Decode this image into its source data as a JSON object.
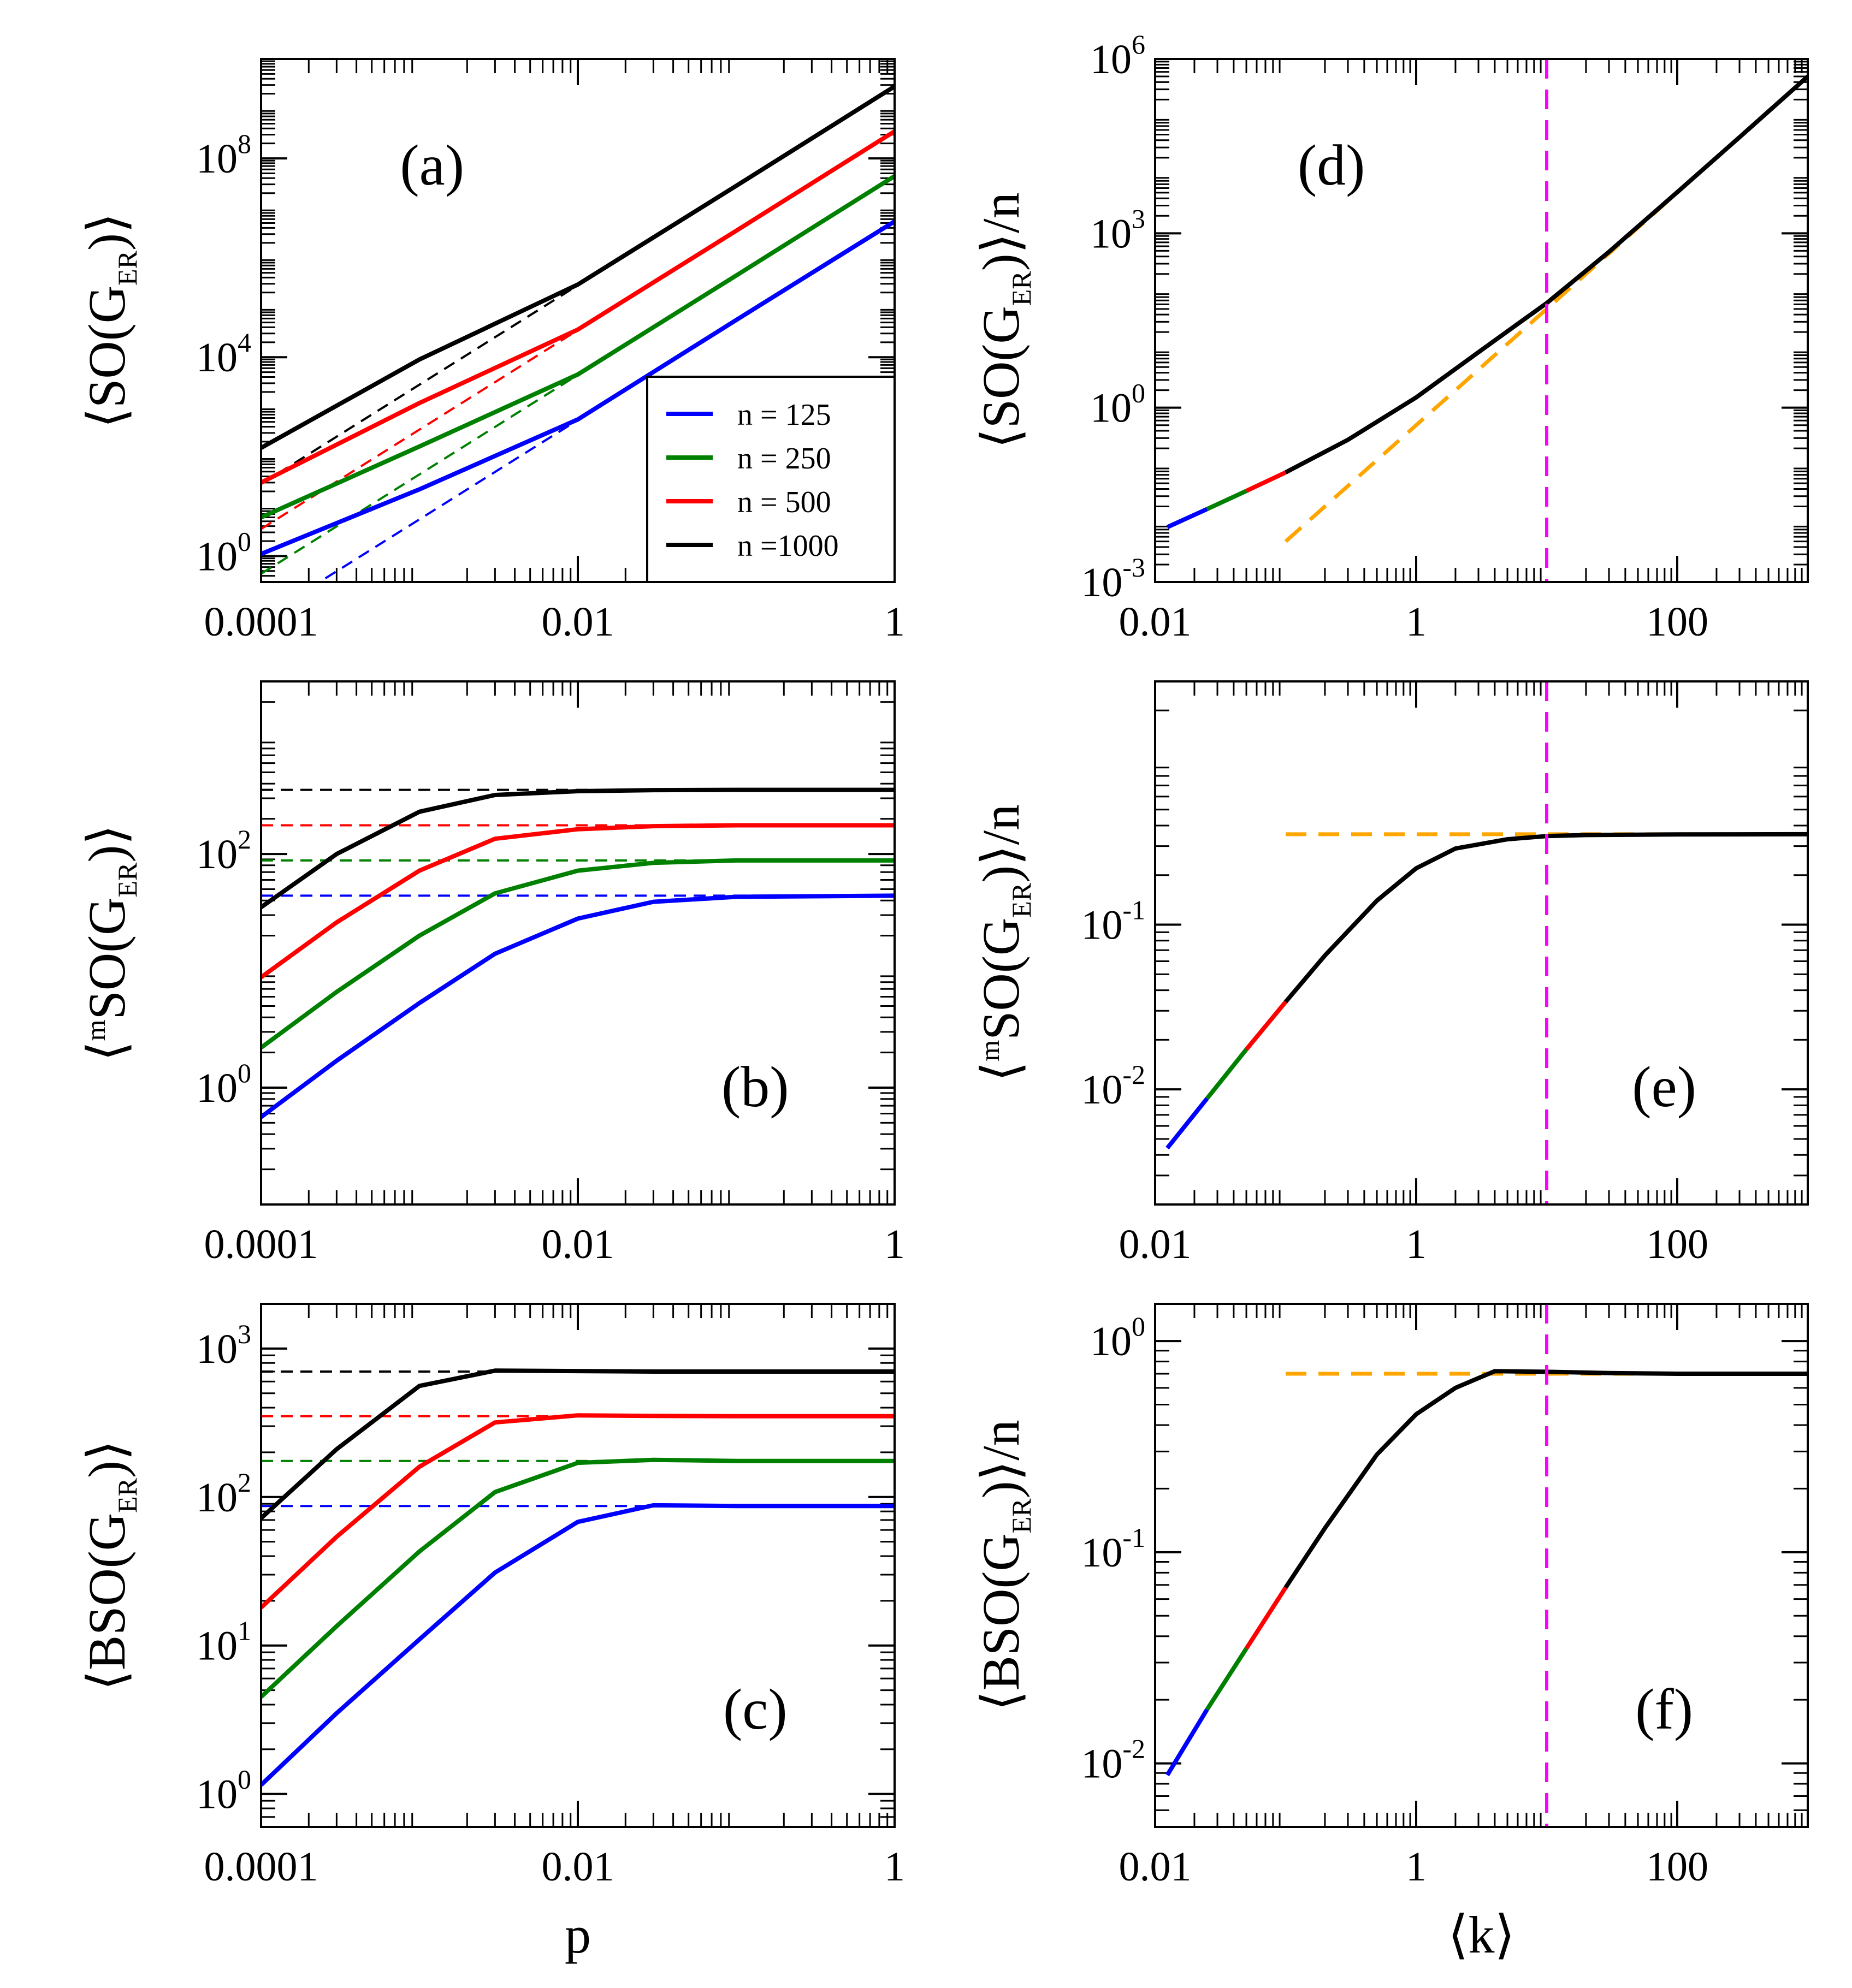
{
  "colors": {
    "n125": "#0000ff",
    "n250": "#008000",
    "n500": "#ff0000",
    "n1000": "#000000",
    "orange": "#ffa500",
    "magenta": "#ff00ff"
  },
  "legend": {
    "entries": [
      {
        "label": "n = 125",
        "color": "#0000ff"
      },
      {
        "label": "n = 250",
        "color": "#008000"
      },
      {
        "label": "n = 500",
        "color": "#ff0000"
      },
      {
        "label": "n =1000",
        "color": "#000000"
      }
    ]
  },
  "chart_data": [
    {
      "id": "a",
      "type": "line",
      "panel_label": "(a)",
      "ylabel": {
        "pre": "⟨SO(G",
        "sub": "ER",
        "post": ")⟩"
      },
      "xlabel": "",
      "xlim": [
        0.0001,
        1
      ],
      "ylim": [
        0.3,
        10000000000.0
      ],
      "xscale": "log",
      "yscale": "log",
      "xticks": [
        {
          "v": 0.0001,
          "label": "0.0001"
        },
        {
          "v": 0.01,
          "label": "0.01"
        },
        {
          "v": 1,
          "label": "1"
        }
      ],
      "yticks": [
        {
          "v": 1,
          "base": "10",
          "exp": "0"
        },
        {
          "v": 10000,
          "base": "10",
          "exp": "4"
        },
        {
          "v": 100000000,
          "base": "10",
          "exp": "8"
        }
      ],
      "series": [
        {
          "name": "n = 125",
          "color": "#0000ff",
          "style": "solid",
          "x": [
            0.0001,
            0.001,
            0.01,
            0.1,
            1
          ],
          "y": [
            1.1,
            22,
            560,
            56000,
            5400000
          ]
        },
        {
          "name": "n = 250",
          "color": "#008000",
          "style": "solid",
          "x": [
            0.0001,
            0.001,
            0.01,
            0.1,
            1
          ],
          "y": [
            6,
            160,
            4500,
            440000,
            44000000
          ]
        },
        {
          "name": "n = 500",
          "color": "#ff0000",
          "style": "solid",
          "x": [
            0.0001,
            0.001,
            0.01,
            0.1,
            1
          ],
          "y": [
            30,
            1200,
            36000,
            3500000,
            350000000
          ]
        },
        {
          "name": "n = 1000",
          "color": "#000000",
          "style": "solid",
          "x": [
            0.0001,
            0.001,
            0.01,
            0.1,
            1
          ],
          "y": [
            150,
            9000,
            290000,
            28000000,
            2800000000
          ]
        },
        {
          "name": "n = 125 asymptote",
          "color": "#0000ff",
          "style": "dashed",
          "x": [
            0.0002,
            1
          ],
          "y": [
            0.22,
            5400000
          ]
        },
        {
          "name": "n = 250 asymptote",
          "color": "#008000",
          "style": "dashed",
          "x": [
            0.0001,
            1
          ],
          "y": [
            0.44,
            44000000
          ]
        },
        {
          "name": "n = 500 asymptote",
          "color": "#ff0000",
          "style": "dashed",
          "x": [
            0.0001,
            1
          ],
          "y": [
            3.5,
            350000000
          ]
        },
        {
          "name": "n = 1000 asymptote",
          "color": "#000000",
          "style": "dashed",
          "x": [
            0.0001,
            1
          ],
          "y": [
            28,
            2800000000
          ]
        }
      ]
    },
    {
      "id": "b",
      "type": "line",
      "panel_label": "(b)",
      "ylabel": {
        "pre": "⟨",
        "presup": "m",
        "mid": "SO(G",
        "sub": "ER",
        "post": ")⟩"
      },
      "xlabel": "",
      "xlim": [
        0.0001,
        1
      ],
      "ylim": [
        0.1,
        3000
      ],
      "xscale": "log",
      "yscale": "log",
      "xticks": [
        {
          "v": 0.0001,
          "label": "0.0001"
        },
        {
          "v": 0.01,
          "label": "0.01"
        },
        {
          "v": 1,
          "label": "1"
        }
      ],
      "yticks": [
        {
          "v": 1,
          "base": "10",
          "exp": "0"
        },
        {
          "v": 100,
          "base": "10",
          "exp": "2"
        }
      ],
      "series": [
        {
          "name": "n = 125",
          "color": "#0000ff",
          "style": "solid",
          "x": [
            0.0001,
            0.0003,
            0.001,
            0.003,
            0.01,
            0.03,
            0.1,
            1
          ],
          "y": [
            0.56,
            1.7,
            5.3,
            14,
            28,
            39,
            43,
            44
          ]
        },
        {
          "name": "n = 250",
          "color": "#008000",
          "style": "solid",
          "x": [
            0.0001,
            0.0003,
            0.001,
            0.003,
            0.01,
            0.03,
            0.1,
            1
          ],
          "y": [
            2.2,
            6.6,
            20,
            46,
            72,
            84,
            88,
            88
          ]
        },
        {
          "name": "n = 500",
          "color": "#ff0000",
          "style": "solid",
          "x": [
            0.0001,
            0.0003,
            0.001,
            0.003,
            0.01,
            0.03,
            0.1,
            1
          ],
          "y": [
            8.8,
            26,
            72,
            135,
            163,
            173,
            176,
            176
          ]
        },
        {
          "name": "n = 1000",
          "color": "#000000",
          "style": "solid",
          "x": [
            0.0001,
            0.0003,
            0.001,
            0.003,
            0.01,
            0.03,
            0.1,
            1
          ],
          "y": [
            35,
            100,
            230,
            320,
            345,
            352,
            354,
            354
          ]
        },
        {
          "name": "n = 125 limit",
          "color": "#0000ff",
          "style": "dashed",
          "x": [
            0.0001,
            1
          ],
          "y": [
            44,
            44
          ]
        },
        {
          "name": "n = 250 limit",
          "color": "#008000",
          "style": "dashed",
          "x": [
            0.0001,
            1
          ],
          "y": [
            88,
            88
          ]
        },
        {
          "name": "n = 500 limit",
          "color": "#ff0000",
          "style": "dashed",
          "x": [
            0.0001,
            1
          ],
          "y": [
            176,
            176
          ]
        },
        {
          "name": "n = 1000 limit",
          "color": "#000000",
          "style": "dashed",
          "x": [
            0.0001,
            1
          ],
          "y": [
            354,
            354
          ]
        }
      ]
    },
    {
      "id": "c",
      "type": "line",
      "panel_label": "(c)",
      "ylabel": {
        "pre": "⟨BSO(G",
        "sub": "ER",
        "post": ")⟩"
      },
      "xlabel": "p",
      "xlim": [
        0.0001,
        1
      ],
      "ylim": [
        0.6,
        2000
      ],
      "xscale": "log",
      "yscale": "log",
      "xticks": [
        {
          "v": 0.0001,
          "label": "0.0001"
        },
        {
          "v": 0.01,
          "label": "0.01"
        },
        {
          "v": 1,
          "label": "1"
        }
      ],
      "yticks": [
        {
          "v": 1,
          "base": "10",
          "exp": "0"
        },
        {
          "v": 10,
          "base": "10",
          "exp": "1"
        },
        {
          "v": 100,
          "base": "10",
          "exp": "2"
        },
        {
          "v": 1000,
          "base": "10",
          "exp": "3"
        }
      ],
      "series": [
        {
          "name": "n = 125",
          "color": "#0000ff",
          "style": "solid",
          "x": [
            0.0001,
            0.0003,
            0.001,
            0.003,
            0.01,
            0.03,
            0.1,
            1
          ],
          "y": [
            1.15,
            3.5,
            11,
            31,
            68,
            88,
            87,
            87
          ]
        },
        {
          "name": "n = 250",
          "color": "#008000",
          "style": "solid",
          "x": [
            0.0001,
            0.0003,
            0.001,
            0.003,
            0.01,
            0.03,
            0.1,
            1
          ],
          "y": [
            4.5,
            13.5,
            43,
            108,
            170,
            178,
            175,
            175
          ]
        },
        {
          "name": "n = 500",
          "color": "#ff0000",
          "style": "solid",
          "x": [
            0.0001,
            0.0003,
            0.001,
            0.003,
            0.01,
            0.03,
            0.1,
            1
          ],
          "y": [
            18,
            54,
            160,
            318,
            355,
            352,
            350,
            350
          ]
        },
        {
          "name": "n = 1000",
          "color": "#000000",
          "style": "solid",
          "x": [
            0.0001,
            0.0003,
            0.001,
            0.003,
            0.01,
            0.03,
            0.1,
            1
          ],
          "y": [
            72,
            210,
            560,
            710,
            705,
            700,
            700,
            700
          ]
        },
        {
          "name": "n = 125 limit",
          "color": "#0000ff",
          "style": "dashed",
          "x": [
            0.0001,
            1
          ],
          "y": [
            87,
            87
          ]
        },
        {
          "name": "n = 250 limit",
          "color": "#008000",
          "style": "dashed",
          "x": [
            0.0001,
            1
          ],
          "y": [
            175,
            175
          ]
        },
        {
          "name": "n = 500 limit",
          "color": "#ff0000",
          "style": "dashed",
          "x": [
            0.0001,
            1
          ],
          "y": [
            350,
            350
          ]
        },
        {
          "name": "n = 1000 limit",
          "color": "#000000",
          "style": "dashed",
          "x": [
            0.0001,
            1
          ],
          "y": [
            700,
            700
          ]
        }
      ]
    },
    {
      "id": "d",
      "type": "line",
      "panel_label": "(d)",
      "ylabel": {
        "pre": "⟨SO(G",
        "sub": "ER",
        "post": ")⟩/n"
      },
      "xlabel": "",
      "xlim": [
        0.01,
        1000
      ],
      "ylim": [
        0.001,
        1000000
      ],
      "xscale": "log",
      "yscale": "log",
      "xticks": [
        {
          "v": 0.01,
          "label": "0.01"
        },
        {
          "v": 1,
          "label": "1"
        },
        {
          "v": 100,
          "label": "100"
        }
      ],
      "yticks": [
        {
          "v": 0.001,
          "base": "10",
          "exp": "-3"
        },
        {
          "v": 1,
          "base": "10",
          "exp": "0"
        },
        {
          "v": 1000,
          "base": "10",
          "exp": "3"
        },
        {
          "v": 1000000,
          "base": "10",
          "exp": "6"
        }
      ],
      "vline": {
        "x": 10,
        "color": "#ff00ff"
      },
      "series": [
        {
          "name": "n = 125 segment",
          "color": "#0000ff",
          "style": "solid",
          "x": [
            0.0124,
            0.025
          ],
          "y": [
            0.0088,
            0.018
          ]
        },
        {
          "name": "n = 250 segment",
          "color": "#008000",
          "style": "solid",
          "x": [
            0.025,
            0.05
          ],
          "y": [
            0.018,
            0.037
          ]
        },
        {
          "name": "n = 500 segment",
          "color": "#ff0000",
          "style": "solid",
          "x": [
            0.05,
            0.1
          ],
          "y": [
            0.037,
            0.077
          ]
        },
        {
          "name": "n = 1000",
          "color": "#000000",
          "style": "solid",
          "x": [
            0.1,
            0.3,
            1,
            3,
            10,
            30,
            100,
            300,
            1000
          ],
          "y": [
            0.077,
            0.28,
            1.5,
            9,
            63,
            480,
            5100,
            45000,
            500000
          ]
        },
        {
          "name": "asymptote",
          "color": "#ffa500",
          "style": "dashed",
          "x": [
            0.1,
            1000
          ],
          "y": [
            0.005,
            500000
          ]
        }
      ]
    },
    {
      "id": "e",
      "type": "line",
      "panel_label": "(e)",
      "ylabel": {
        "pre": "⟨",
        "presup": "m",
        "mid": "SO(G",
        "sub": "ER",
        "post": ")⟩/n"
      },
      "xlabel": "",
      "xlim": [
        0.01,
        1000
      ],
      "ylim": [
        0.002,
        3
      ],
      "xscale": "log",
      "yscale": "log",
      "xticks": [
        {
          "v": 0.01,
          "label": "0.01"
        },
        {
          "v": 1,
          "label": "1"
        },
        {
          "v": 100,
          "label": "100"
        }
      ],
      "yticks": [
        {
          "v": 0.01,
          "base": "10",
          "exp": "-2"
        },
        {
          "v": 0.1,
          "base": "10",
          "exp": "-1"
        }
      ],
      "vline": {
        "x": 10,
        "color": "#ff00ff"
      },
      "series": [
        {
          "name": "n = 125 segment",
          "color": "#0000ff",
          "style": "solid",
          "x": [
            0.0124,
            0.025
          ],
          "y": [
            0.0044,
            0.0088
          ]
        },
        {
          "name": "n = 250 segment",
          "color": "#008000",
          "style": "solid",
          "x": [
            0.025,
            0.05
          ],
          "y": [
            0.0088,
            0.0175
          ]
        },
        {
          "name": "n = 500 segment",
          "color": "#ff0000",
          "style": "solid",
          "x": [
            0.05,
            0.1
          ],
          "y": [
            0.0175,
            0.034
          ]
        },
        {
          "name": "n = 1000",
          "color": "#000000",
          "style": "solid",
          "x": [
            0.1,
            0.2,
            0.5,
            1,
            2,
            5,
            10,
            20,
            50,
            100,
            1000
          ],
          "y": [
            0.034,
            0.065,
            0.14,
            0.22,
            0.29,
            0.33,
            0.345,
            0.35,
            0.352,
            0.353,
            0.354
          ]
        },
        {
          "name": "limit",
          "color": "#ffa500",
          "style": "dashed",
          "x": [
            0.1,
            1000
          ],
          "y": [
            0.354,
            0.354
          ]
        }
      ]
    },
    {
      "id": "f",
      "type": "line",
      "panel_label": "(f)",
      "ylabel": {
        "pre": "⟨BSO(G",
        "sub": "ER",
        "post": ")⟩/n"
      },
      "xlabel": "⟨k⟩",
      "xlim": [
        0.01,
        1000
      ],
      "ylim": [
        0.005,
        1.5
      ],
      "xscale": "log",
      "yscale": "log",
      "xticks": [
        {
          "v": 0.01,
          "label": "0.01"
        },
        {
          "v": 1,
          "label": "1"
        },
        {
          "v": 100,
          "label": "100"
        }
      ],
      "yticks": [
        {
          "v": 0.01,
          "base": "10",
          "exp": "-2"
        },
        {
          "v": 0.1,
          "base": "10",
          "exp": "-1"
        },
        {
          "v": 1,
          "base": "10",
          "exp": "0"
        }
      ],
      "vline": {
        "x": 10,
        "color": "#ff00ff"
      },
      "series": [
        {
          "name": "n = 125 segment",
          "color": "#0000ff",
          "style": "solid",
          "x": [
            0.0124,
            0.025
          ],
          "y": [
            0.0088,
            0.018
          ]
        },
        {
          "name": "n = 250 segment",
          "color": "#008000",
          "style": "solid",
          "x": [
            0.025,
            0.05
          ],
          "y": [
            0.018,
            0.035
          ]
        },
        {
          "name": "n = 500 segment",
          "color": "#ff0000",
          "style": "solid",
          "x": [
            0.05,
            0.1
          ],
          "y": [
            0.035,
            0.068
          ]
        },
        {
          "name": "n = 1000",
          "color": "#000000",
          "style": "solid",
          "x": [
            0.1,
            0.2,
            0.5,
            1,
            2,
            4,
            10,
            30,
            100,
            1000
          ],
          "y": [
            0.068,
            0.13,
            0.29,
            0.45,
            0.6,
            0.72,
            0.715,
            0.705,
            0.7,
            0.7
          ]
        },
        {
          "name": "limit",
          "color": "#ffa500",
          "style": "dashed",
          "x": [
            0.1,
            1000
          ],
          "y": [
            0.7,
            0.7
          ]
        }
      ]
    }
  ]
}
